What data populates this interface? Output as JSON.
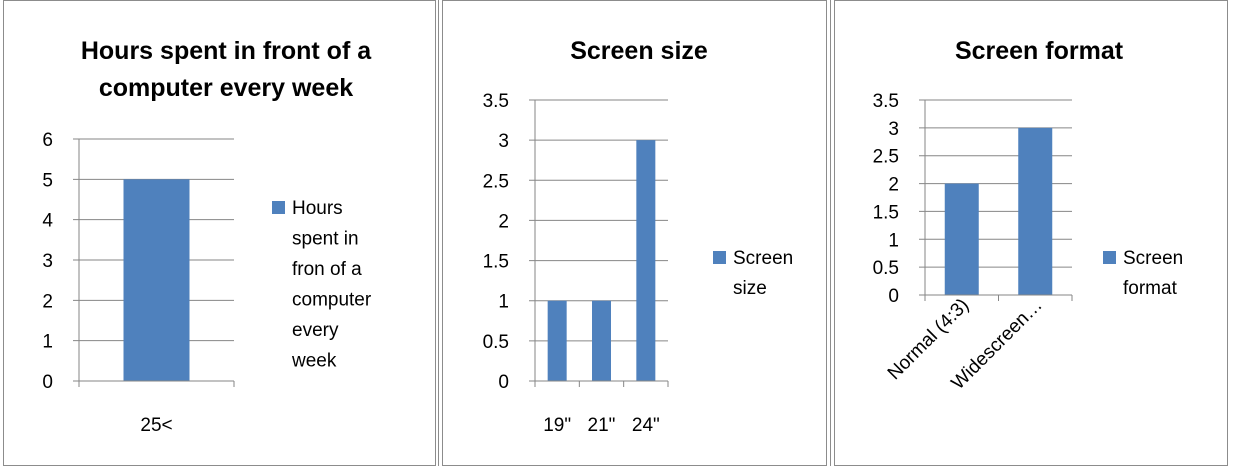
{
  "colors": {
    "bar": "#4f81bd",
    "grid": "#868686",
    "border": "#8c8c8c"
  },
  "chart_data": [
    {
      "type": "bar",
      "title": [
        "Hours spent in front of a",
        "computer every week"
      ],
      "categories": [
        "25<"
      ],
      "series": [
        {
          "name": "Hours spent in fron of a computer every week",
          "values": [
            5
          ]
        }
      ],
      "ylim": [
        0,
        6
      ],
      "yticks": [
        "0",
        "1",
        "2",
        "3",
        "4",
        "5",
        "6"
      ],
      "legend": [
        "Hours",
        "spent in",
        "fron of a",
        "computer",
        "every",
        "week"
      ],
      "legend_position": "right",
      "grid": true
    },
    {
      "type": "bar",
      "title": [
        "Screen size"
      ],
      "categories": [
        "19\"",
        "21\"",
        "24\""
      ],
      "series": [
        {
          "name": "Screen size",
          "values": [
            1,
            1,
            3
          ]
        }
      ],
      "ylim": [
        0,
        3.5
      ],
      "yticks": [
        "0",
        "0.5",
        "1",
        "1.5",
        "2",
        "2.5",
        "3",
        "3.5"
      ],
      "legend": [
        "Screen",
        "size"
      ],
      "legend_position": "right",
      "grid": true
    },
    {
      "type": "bar",
      "title": [
        "Screen format"
      ],
      "categories": [
        "Normal (4:3)",
        "Widescreen…"
      ],
      "series": [
        {
          "name": "Screen format",
          "values": [
            2,
            3
          ]
        }
      ],
      "ylim": [
        0,
        3.5
      ],
      "yticks": [
        "0",
        "0.5",
        "1",
        "1.5",
        "2",
        "2.5",
        "3",
        "3.5"
      ],
      "legend": [
        "Screen",
        "format"
      ],
      "legend_position": "right",
      "grid": true
    }
  ]
}
